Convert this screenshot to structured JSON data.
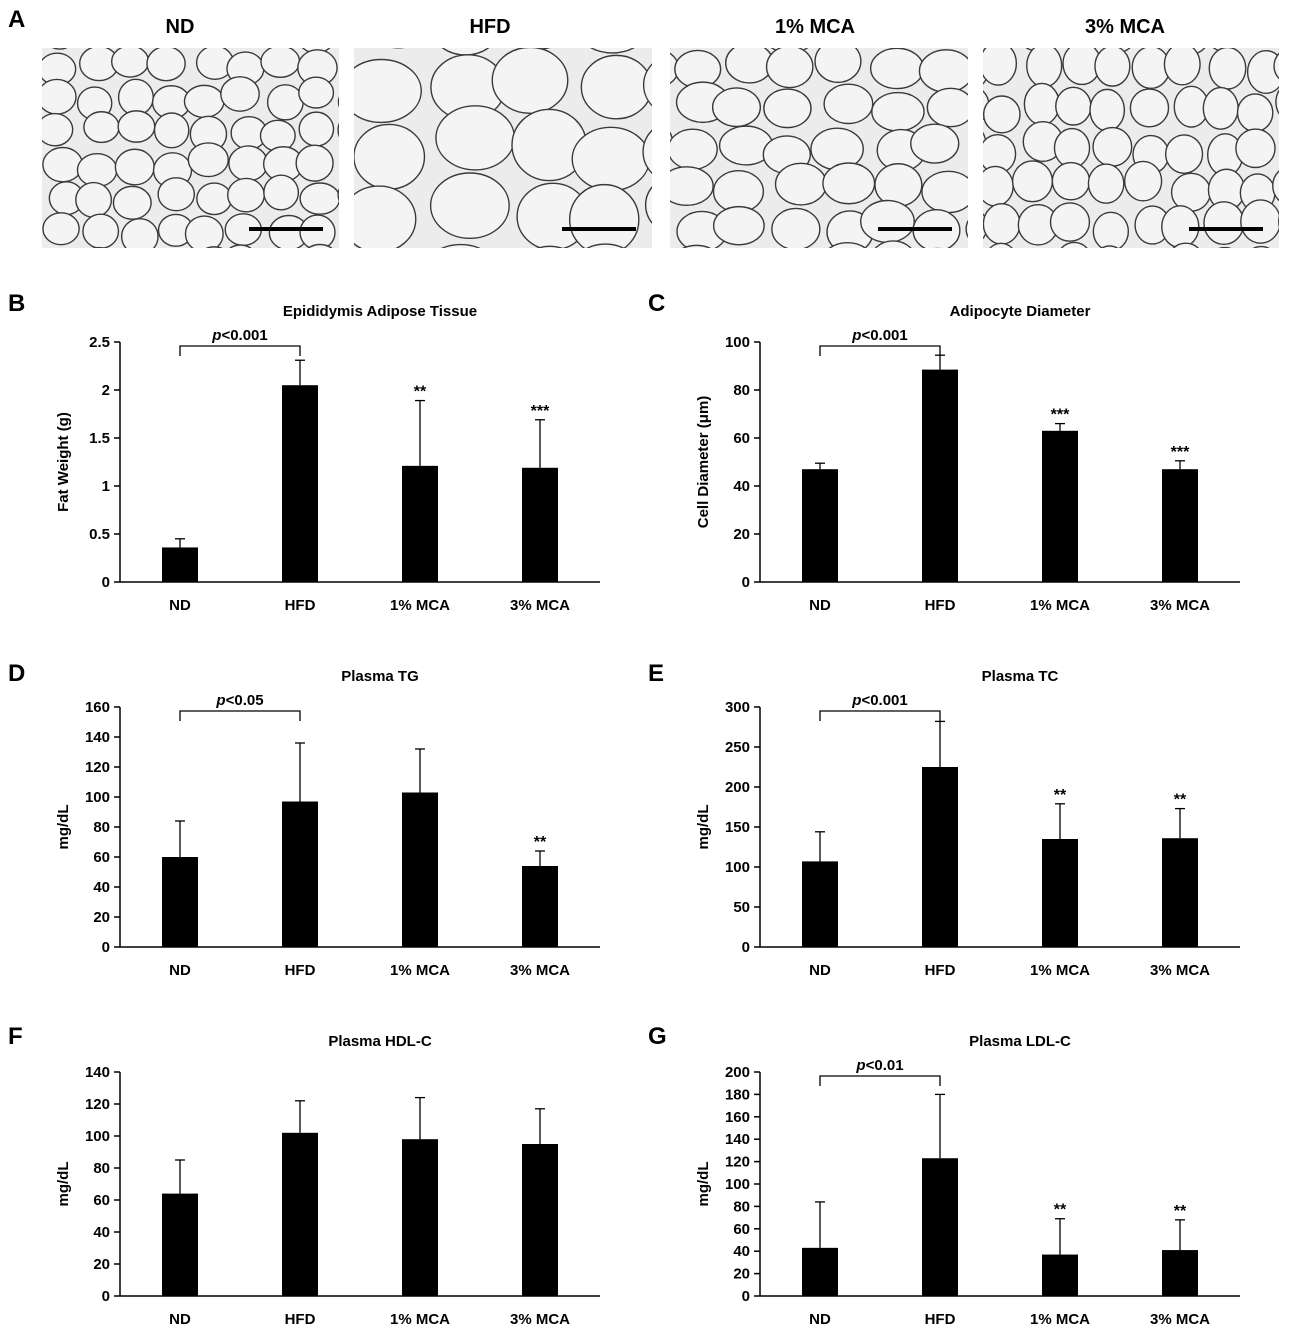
{
  "panel_a": {
    "label": "A",
    "images": [
      {
        "title": "ND"
      },
      {
        "title": "HFD"
      },
      {
        "title": "1% MCA"
      },
      {
        "title": "3% MCA"
      }
    ]
  },
  "chart_data": [
    {
      "panel": "B",
      "type": "bar",
      "title": "Epididymis Adipose Tissue",
      "ylabel": "Fat Weight (g)",
      "xlabel": "",
      "categories": [
        "ND",
        "HFD",
        "1% MCA",
        "3% MCA"
      ],
      "values": [
        0.36,
        2.05,
        1.21,
        1.19
      ],
      "errors": [
        0.09,
        0.26,
        0.68,
        0.5
      ],
      "significance": [
        "",
        "",
        "**",
        "***"
      ],
      "ylim": [
        0,
        2.5
      ],
      "yticks": [
        0,
        0.5,
        1,
        1.5,
        2,
        2.5
      ],
      "ytick_labels": [
        "0",
        "0.5",
        "1",
        "1.5",
        "2",
        "2.5"
      ],
      "comparison": {
        "from": 0,
        "to": 1,
        "label_prefix": "p",
        "label_suffix": "<0.001"
      }
    },
    {
      "panel": "C",
      "type": "bar",
      "title": "Adipocyte Diameter",
      "ylabel": "Cell Diameter (μm)",
      "xlabel": "",
      "categories": [
        "ND",
        "HFD",
        "1% MCA",
        "3% MCA"
      ],
      "values": [
        47,
        88.5,
        63,
        47
      ],
      "errors": [
        2.5,
        6,
        3,
        3.5
      ],
      "significance": [
        "",
        "",
        "***",
        "***"
      ],
      "ylim": [
        0,
        100
      ],
      "yticks": [
        0,
        20,
        40,
        60,
        80,
        100
      ],
      "ytick_labels": [
        "0",
        "20",
        "40",
        "60",
        "80",
        "100"
      ],
      "comparison": {
        "from": 0,
        "to": 1,
        "label_prefix": "p",
        "label_suffix": "<0.001"
      }
    },
    {
      "panel": "D",
      "type": "bar",
      "title": "Plasma TG",
      "ylabel": "mg/dL",
      "xlabel": "",
      "categories": [
        "ND",
        "HFD",
        "1% MCA",
        "3% MCA"
      ],
      "values": [
        60,
        97,
        103,
        54
      ],
      "errors": [
        24,
        39,
        29,
        10
      ],
      "significance": [
        "",
        "",
        "",
        "**"
      ],
      "ylim": [
        0,
        160
      ],
      "yticks": [
        0,
        20,
        40,
        60,
        80,
        100,
        120,
        140,
        160
      ],
      "ytick_labels": [
        "0",
        "20",
        "40",
        "60",
        "80",
        "100",
        "120",
        "140",
        "160"
      ],
      "comparison": {
        "from": 0,
        "to": 1,
        "label_prefix": "p",
        "label_suffix": "<0.05"
      }
    },
    {
      "panel": "E",
      "type": "bar",
      "title": "Plasma TC",
      "ylabel": "mg/dL",
      "xlabel": "",
      "categories": [
        "ND",
        "HFD",
        "1% MCA",
        "3% MCA"
      ],
      "values": [
        107,
        225,
        135,
        136
      ],
      "errors": [
        37,
        57,
        44,
        37
      ],
      "significance": [
        "",
        "",
        "**",
        "**"
      ],
      "ylim": [
        0,
        300
      ],
      "yticks": [
        0,
        50,
        100,
        150,
        200,
        250,
        300
      ],
      "ytick_labels": [
        "0",
        "50",
        "100",
        "150",
        "200",
        "250",
        "300"
      ],
      "comparison": {
        "from": 0,
        "to": 1,
        "label_prefix": "p",
        "label_suffix": "<0.001"
      }
    },
    {
      "panel": "F",
      "type": "bar",
      "title": "Plasma HDL-C",
      "ylabel": "mg/dL",
      "xlabel": "",
      "categories": [
        "ND",
        "HFD",
        "1% MCA",
        "3% MCA"
      ],
      "values": [
        64,
        102,
        98,
        95
      ],
      "errors": [
        21,
        20,
        26,
        22
      ],
      "significance": [
        "",
        "",
        "",
        ""
      ],
      "ylim": [
        0,
        140
      ],
      "yticks": [
        0,
        20,
        40,
        60,
        80,
        100,
        120,
        140
      ],
      "ytick_labels": [
        "0",
        "20",
        "40",
        "60",
        "80",
        "100",
        "120",
        "140"
      ],
      "comparison": null
    },
    {
      "panel": "G",
      "type": "bar",
      "title": "Plasma LDL-C",
      "ylabel": "mg/dL",
      "xlabel": "",
      "categories": [
        "ND",
        "HFD",
        "1% MCA",
        "3% MCA"
      ],
      "values": [
        43,
        123,
        37,
        41
      ],
      "errors": [
        41,
        57,
        32,
        27
      ],
      "significance": [
        "",
        "",
        "**",
        "**"
      ],
      "ylim": [
        0,
        200
      ],
      "yticks": [
        0,
        20,
        40,
        60,
        80,
        100,
        120,
        140,
        160,
        180,
        200
      ],
      "ytick_labels": [
        "0",
        "20",
        "40",
        "60",
        "80",
        "100",
        "120",
        "140",
        "160",
        "180",
        "200"
      ],
      "comparison": {
        "from": 0,
        "to": 1,
        "label_prefix": "p",
        "label_suffix": "<0.01"
      }
    }
  ]
}
